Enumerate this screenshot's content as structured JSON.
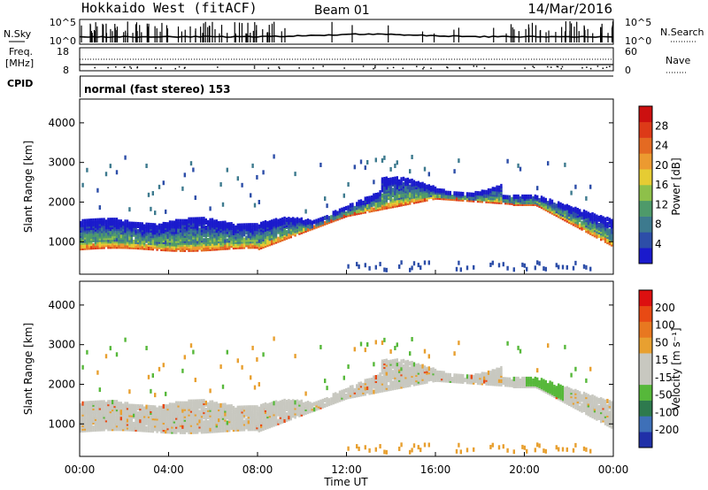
{
  "header": {
    "station": "Hokkaido West (fitACF)",
    "beam": "Beam 01",
    "date": "14/Mar/2016"
  },
  "chart_data": [
    {
      "type": "line",
      "panel": "noise",
      "left_label": "N.Sky",
      "right_label": "N.Search",
      "left_ticks": [
        "10^5",
        "10^0"
      ],
      "right_ticks": [
        "10^5",
        "10^0"
      ],
      "y_scale": "log"
    },
    {
      "type": "scatter",
      "panel": "frequency",
      "left_label": "Freq.",
      "left_unit": "[MHz]",
      "left_ticks": [
        "18",
        "8"
      ],
      "right_label": "Nave",
      "right_ticks": [
        "60",
        "0"
      ]
    },
    {
      "type": "table",
      "panel": "cpid",
      "label": "CPID",
      "text": "normal (fast stereo) 153"
    },
    {
      "type": "heatmap",
      "panel": "power",
      "ylabel": "Slant Range [km]",
      "ylim": [
        180,
        4600
      ],
      "yticks": [
        "1000",
        "2000",
        "3000",
        "4000"
      ],
      "colorbar_label": "Power [dB]",
      "colorbar_ticks": [
        "4",
        "8",
        "12",
        "16",
        "20",
        "24",
        "28"
      ],
      "colorbar_colors": [
        "#1a1acc",
        "#2d4ea8",
        "#3d7a8e",
        "#4e9a6a",
        "#8ec04a",
        "#e6cc33",
        "#ec9a30",
        "#e46a22",
        "#dd3a18",
        "#cc1010"
      ]
    },
    {
      "type": "heatmap",
      "panel": "velocity",
      "ylabel": "Slant Range [km]",
      "ylim": [
        180,
        4600
      ],
      "yticks": [
        "1000",
        "2000",
        "3000",
        "4000"
      ],
      "colorbar_label": "Velocity [m s⁻¹]",
      "colorbar_ticks": [
        "200",
        "100",
        "50",
        "15",
        "-15",
        "-50",
        "-100",
        "-200"
      ],
      "colorbar_colors": [
        "#2030a8",
        "#3e70b8",
        "#2e7a4e",
        "#56b83a",
        "#c8c8c0",
        "#c8c8c0",
        "#e8a030",
        "#e87820",
        "#e84a14",
        "#dd1010"
      ]
    }
  ],
  "time_axis": {
    "xlabel": "Time UT",
    "xlim_hours": [
      0,
      24
    ],
    "ticks": [
      "00:00",
      "04:00",
      "08:00",
      "12:00",
      "16:00",
      "20:00",
      "00:00"
    ]
  }
}
